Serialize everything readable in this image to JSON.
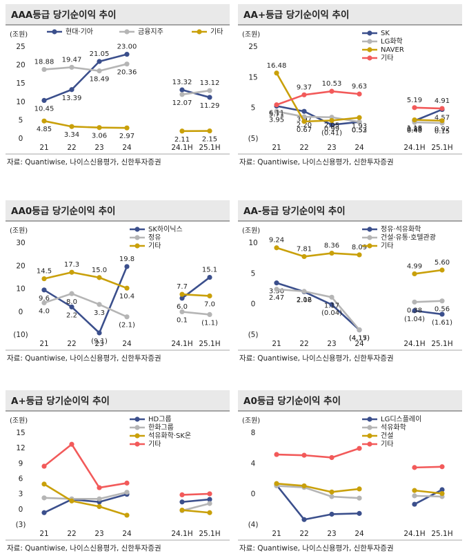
{
  "chart_data": [
    {
      "type": "line",
      "title": "AAA등급 당기순이익 추이",
      "unit": "(조원)",
      "source": "자료: Quantiwise, 나이스신용평가, 신한투자증권",
      "legend": "top",
      "categories": [
        "21",
        "22",
        "23",
        "24",
        null,
        "24.1H",
        "25.1H"
      ],
      "ylim": [
        0,
        25
      ],
      "yticks": [
        0,
        5,
        10,
        15,
        20,
        25
      ],
      "series": [
        {
          "name": "현대·기아",
          "color": "#3b4f8c",
          "values": [
            10.45,
            13.39,
            21.05,
            23.0,
            null,
            13.32,
            11.29
          ],
          "value_labels": [
            "10.45",
            "13.39",
            "21.05",
            "23.00",
            null,
            "13.32",
            "11.29"
          ]
        },
        {
          "name": "금융지주",
          "color": "#b5b5b5",
          "values": [
            18.88,
            19.47,
            18.49,
            20.36,
            null,
            12.07,
            13.12
          ],
          "value_labels": [
            "18.88",
            "19.47",
            "18.49",
            "20.36",
            null,
            "12.07",
            "13.12"
          ]
        },
        {
          "name": "기타",
          "color": "#c9a00a",
          "values": [
            4.85,
            3.34,
            3.06,
            2.97,
            null,
            2.11,
            2.15
          ],
          "value_labels": [
            "4.85",
            "3.34",
            "3.06",
            "2.97",
            null,
            "2.11",
            "2.15"
          ]
        }
      ]
    },
    {
      "type": "line",
      "title": "AA+등급 당기순이익 추이",
      "unit": "(조원)",
      "source": "자료: Quantiwise, 나이스신용평가, 신한투자증권",
      "legend": "top-right",
      "categories": [
        "21",
        "22",
        "23",
        "24",
        null,
        "24.1H",
        "25.1H"
      ],
      "ylim": [
        -5,
        25
      ],
      "yticks": [
        {
          "value": -5,
          "label": "(5)"
        },
        5,
        15,
        25
      ],
      "series": [
        {
          "name": "SK",
          "color": "#3b4f8c",
          "values": [
            5.71,
            3.97,
            -0.41,
            0.52,
            null,
            0.89,
            4.57
          ],
          "value_labels": [
            "5.71",
            "3.97",
            "(0.41)",
            "0.52",
            null,
            "0.89",
            "4.57"
          ]
        },
        {
          "name": "LG화학",
          "color": "#b5b5b5",
          "values": [
            3.95,
            2.2,
            2.05,
            0.53,
            null,
            0.4,
            0.15
          ],
          "value_labels": [
            "3.95",
            "2.20",
            "2.05",
            "0.53",
            null,
            "0.40",
            "0.15"
          ]
        },
        {
          "name": "NAVER",
          "color": "#c9a00a",
          "values": [
            16.48,
            0.67,
            0.99,
            1.93,
            null,
            1.18,
            0.92
          ],
          "value_labels": [
            "16.48",
            "0.67",
            "0.99",
            "1.93",
            null,
            "1.18",
            "0.92"
          ]
        },
        {
          "name": "기타",
          "color": "#f25a5a",
          "values": [
            6.11,
            9.37,
            10.53,
            9.63,
            null,
            5.19,
            4.91
          ],
          "value_labels": [
            "6.11",
            "9.37",
            "10.53",
            "9.63",
            null,
            "5.19",
            "4.91"
          ]
        }
      ]
    },
    {
      "type": "line",
      "title": "AA0등급 당기순이익 추이",
      "unit": "(조원)",
      "source": "자료: Quantiwise, 나이스신용평가, 신한투자증권",
      "legend": "top-right",
      "categories": [
        "21",
        "22",
        "23",
        "24",
        null,
        "24.1H",
        "25.1H"
      ],
      "ylim": [
        -10,
        30
      ],
      "yticks": [
        {
          "value": -10,
          "label": "(10)"
        },
        0,
        10,
        20,
        30
      ],
      "series": [
        {
          "name": "SK하이닉스",
          "color": "#3b4f8c",
          "values": [
            9.6,
            2.2,
            -9.1,
            19.8,
            null,
            6.0,
            15.1
          ],
          "value_labels": [
            "9.6",
            "2.2",
            "(9.1)",
            "19.8",
            null,
            "6.0",
            "15.1"
          ]
        },
        {
          "name": "정유",
          "color": "#b5b5b5",
          "values": [
            4.0,
            8.0,
            3.3,
            -2.1,
            null,
            0.1,
            -1.1
          ],
          "value_labels": [
            "4.0",
            "8.0",
            "3.3",
            "(2.1)",
            null,
            "0.1",
            "(1.1)"
          ]
        },
        {
          "name": "기타",
          "color": "#c9a00a",
          "values": [
            14.5,
            17.3,
            15.0,
            10.4,
            null,
            7.7,
            7.0
          ],
          "value_labels": [
            "14.5",
            "17.3",
            "15.0",
            "10.4",
            null,
            "7.7",
            "7.0"
          ]
        }
      ]
    },
    {
      "type": "line",
      "title": "AA-등급 당기순이익 추이",
      "unit": "(조원)",
      "source": "자료: Quantiwise, 나이스신용평가, 신한투자증권",
      "legend": "top-right",
      "categories": [
        "21",
        "22",
        "23",
        "24",
        null,
        "24.1H",
        "25.1H"
      ],
      "ylim": [
        -5,
        10
      ],
      "yticks": [
        {
          "value": -5,
          "label": "(5)"
        },
        0,
        5,
        10
      ],
      "series": [
        {
          "name": "정유·석유화학",
          "color": "#3b4f8c",
          "values": [
            3.5,
            2.06,
            -0.04,
            -4.17,
            null,
            -1.04,
            -1.61
          ],
          "value_labels": [
            "3.50",
            "2.06",
            "(0.04)",
            "(4.17)",
            null,
            "(1.04)",
            "(1.61)"
          ]
        },
        {
          "name": "건설·유통·호텔관광",
          "color": "#b5b5b5",
          "values": [
            2.47,
            2.12,
            1.17,
            -4.15,
            null,
            0.38,
            0.56
          ],
          "value_labels": [
            "2.47",
            "2.12",
            "1.17",
            "(4.15)",
            null,
            "0.38",
            "0.56"
          ]
        },
        {
          "name": "기타",
          "color": "#c9a00a",
          "values": [
            9.24,
            7.81,
            8.36,
            8.09,
            null,
            4.99,
            5.6
          ],
          "value_labels": [
            "9.24",
            "7.81",
            "8.36",
            "8.09",
            null,
            "4.99",
            "5.60"
          ]
        }
      ]
    },
    {
      "type": "line",
      "title": "A+등급 당기순이익 추이",
      "unit": "(조원)",
      "source": "자료: Quantiwise, 나이스신용평가, 신한투자증권",
      "legend": "top-right",
      "categories": [
        "21",
        "22",
        "23",
        "24",
        null,
        "24.1H",
        "25.1H"
      ],
      "ylim": [
        -3,
        15
      ],
      "yticks": [
        {
          "value": -3,
          "label": "(3)"
        },
        0,
        3,
        6,
        9,
        12,
        15
      ],
      "series": [
        {
          "name": "HD그룹",
          "color": "#3b4f8c",
          "values": [
            -0.6,
            2.0,
            1.5,
            3.0,
            null,
            1.5,
            2.0
          ]
        },
        {
          "name": "한화그룹",
          "color": "#b5b5b5",
          "values": [
            2.3,
            2.1,
            2.1,
            3.4,
            null,
            -0.2,
            1.2
          ]
        },
        {
          "name": "석유화학·SK온",
          "color": "#c9a00a",
          "values": [
            5.0,
            1.7,
            0.6,
            -1.1,
            null,
            -0.1,
            -0.6
          ]
        },
        {
          "name": "기타",
          "color": "#f25a5a",
          "values": [
            8.5,
            12.8,
            4.3,
            5.2,
            null,
            2.9,
            3.1
          ]
        }
      ]
    },
    {
      "type": "line",
      "title": "A0등급 당기순이익 추이",
      "unit": "(조원)",
      "source": "자료: Quantiwise, 나이스신용평가, 신한투자증권",
      "legend": "top-right",
      "categories": [
        "21",
        "22",
        "23",
        "24",
        null,
        "24.1H",
        "25.1H"
      ],
      "ylim": [
        -4,
        8
      ],
      "yticks": [
        {
          "value": -4,
          "label": "(4)"
        },
        0,
        4,
        8
      ],
      "series": [
        {
          "name": "LG디스플레이",
          "color": "#3b4f8c",
          "values": [
            1.2,
            -3.3,
            -2.6,
            -2.5,
            null,
            -1.3,
            0.6
          ]
        },
        {
          "name": "석유화학",
          "color": "#b5b5b5",
          "values": [
            1.1,
            0.9,
            -0.3,
            -0.5,
            null,
            -0.2,
            -0.3
          ]
        },
        {
          "name": "건설",
          "color": "#c9a00a",
          "values": [
            1.4,
            1.1,
            0.3,
            0.7,
            null,
            0.5,
            0.1
          ]
        },
        {
          "name": "기타",
          "color": "#f25a5a",
          "values": [
            5.2,
            5.1,
            4.8,
            6.0,
            null,
            3.5,
            3.6
          ]
        }
      ]
    }
  ]
}
